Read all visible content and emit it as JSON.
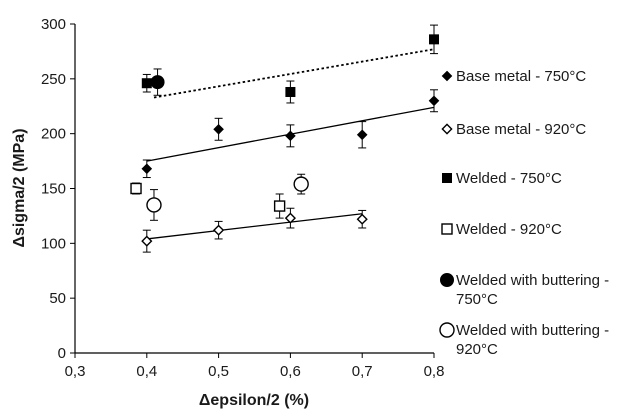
{
  "chart_data": {
    "type": "scatter",
    "title": "",
    "xlabel": "Δepsilon/2 (%)",
    "ylabel": "Δsigma/2 (MPa)",
    "xlim": [
      0.3,
      0.8
    ],
    "ylim": [
      0,
      300
    ],
    "xticks": [
      "0,3",
      "0,4",
      "0,5",
      "0,6",
      "0,7",
      "0,8"
    ],
    "yticks": [
      "0",
      "50",
      "100",
      "150",
      "200",
      "250",
      "300"
    ],
    "legend_position": "right",
    "grid": false,
    "series": [
      {
        "name": "Base metal - 750°C",
        "marker": "filled-diamond",
        "color": "#000000",
        "x": [
          0.4,
          0.5,
          0.6,
          0.7,
          0.8
        ],
        "y": [
          168,
          204,
          198,
          199,
          230
        ],
        "err": [
          8,
          10,
          10,
          12,
          10
        ],
        "trendline": {
          "x": [
            0.4,
            0.8
          ],
          "y": [
            175,
            224
          ],
          "style": "solid"
        }
      },
      {
        "name": "Base metal - 920°C",
        "marker": "open-diamond",
        "color": "#000000",
        "x": [
          0.4,
          0.5,
          0.6,
          0.7
        ],
        "y": [
          102,
          112,
          123,
          122
        ],
        "err": [
          10,
          8,
          9,
          8
        ],
        "trendline": {
          "x": [
            0.4,
            0.7
          ],
          "y": [
            104,
            127
          ],
          "style": "solid"
        }
      },
      {
        "name": "Welded - 750°C",
        "marker": "filled-square",
        "color": "#000000",
        "x": [
          0.4,
          0.6,
          0.8
        ],
        "y": [
          246,
          238,
          286
        ],
        "err": [
          8,
          10,
          13
        ],
        "trendline": {
          "x": [
            0.41,
            0.8
          ],
          "y": [
            233,
            277
          ],
          "style": "dotted"
        }
      },
      {
        "name": "Welded - 920°C",
        "marker": "open-square",
        "color": "#000000",
        "x": [
          0.385,
          0.585
        ],
        "y": [
          150,
          134
        ],
        "err": [
          5,
          11
        ]
      },
      {
        "name": "Welded with buttering - 750°C",
        "marker": "filled-circle",
        "color": "#000000",
        "x": [
          0.415
        ],
        "y": [
          247
        ],
        "err": [
          12
        ]
      },
      {
        "name": "Welded with buttering - 920°C",
        "marker": "open-circle",
        "color": "#000000",
        "x": [
          0.41,
          0.615
        ],
        "y": [
          135,
          154
        ],
        "err": [
          14,
          9
        ]
      }
    ]
  }
}
